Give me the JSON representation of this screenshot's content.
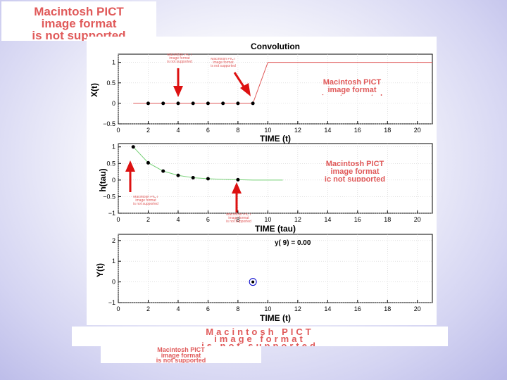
{
  "pict_placeholder": {
    "line1": "Macintosh PICT",
    "line2": "image format",
    "line3": "is not supported"
  },
  "pict_placeholder_scrambled": {
    "line1": "Macintosh PICT",
    "line2": "image format",
    "line3": "ic not supported"
  },
  "pict_small_label": {
    "line1": "Macintosh PICT",
    "line2": "image format",
    "line3": "is not supported"
  },
  "colors": {
    "signal_line": "#e05a5a",
    "decay_line": "#74d074",
    "arrow": "#dd1111",
    "dot": "#000000",
    "marker_ring": "#0000cc",
    "grid": "#cfcfcf"
  },
  "chart_data": [
    {
      "type": "line",
      "title": "Convolution",
      "xlabel": "TIME (t)",
      "ylabel": "X(t)",
      "xlim": [
        0,
        21
      ],
      "ylim": [
        -0.5,
        1.2
      ],
      "xticks": [
        0,
        2,
        4,
        6,
        8,
        10,
        12,
        14,
        16,
        18,
        20
      ],
      "yticks": [
        -0.5,
        0,
        0.5,
        1
      ],
      "ytick_labels": [
        "−0.5",
        "0",
        "0.5",
        "1"
      ],
      "grid": true,
      "line": {
        "x": [
          1,
          9,
          10,
          21
        ],
        "y": [
          0,
          0,
          1,
          1
        ]
      },
      "points": {
        "x": [
          2,
          3,
          4,
          5,
          6,
          7,
          8,
          9
        ],
        "y": [
          0,
          0,
          0,
          0,
          0,
          0,
          0,
          0
        ]
      }
    },
    {
      "type": "line",
      "title": "",
      "xlabel": "TIME (tau)",
      "ylabel": "h(tau)",
      "xlim": [
        0,
        21
      ],
      "ylim": [
        -1,
        1.1
      ],
      "xticks": [
        0,
        2,
        4,
        6,
        8,
        10,
        12,
        14,
        16,
        18,
        20
      ],
      "yticks": [
        -1,
        -0.5,
        0,
        0.5,
        1
      ],
      "ytick_labels": [
        "−1",
        "−0.5",
        "0",
        "0.5",
        "1"
      ],
      "grid": true,
      "line": {
        "x": [
          1,
          2,
          3,
          4,
          5,
          6,
          7,
          8,
          9,
          10,
          11
        ],
        "y": [
          1,
          0.52,
          0.27,
          0.14,
          0.07,
          0.04,
          0.02,
          0.01,
          0,
          0,
          0
        ]
      },
      "points": {
        "x": [
          1,
          2,
          3,
          4,
          5,
          6,
          8
        ],
        "y": [
          1,
          0.52,
          0.27,
          0.14,
          0.07,
          0.04,
          0.01
        ]
      }
    },
    {
      "type": "scatter",
      "title": "",
      "annotation": "y( 9) = 0.00",
      "xlabel": "TIME (t)",
      "ylabel": "Y(t)",
      "xlim": [
        0,
        21
      ],
      "ylim": [
        -1,
        2.3
      ],
      "xticks": [
        0,
        2,
        4,
        6,
        8,
        10,
        12,
        14,
        16,
        18,
        20
      ],
      "yticks": [
        -1,
        0,
        1,
        2
      ],
      "ytick_labels": [
        "−1",
        "0",
        "1",
        "2"
      ],
      "grid": true,
      "points": {
        "x": [
          9
        ],
        "y": [
          0
        ]
      }
    }
  ]
}
